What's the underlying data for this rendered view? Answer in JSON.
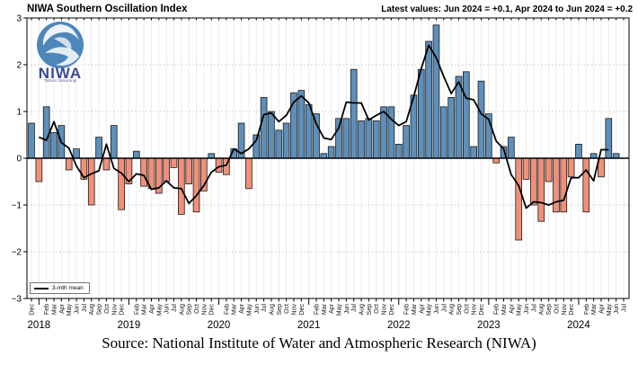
{
  "header": {
    "title": "NIWA Southern Oscillation Index",
    "latest_values": "Latest values: Jun 2024 = +0.1, Apr 2024 to Jun 2024 = +0.2"
  },
  "legend": {
    "mean_line_label": "3-mth mean"
  },
  "caption": "Source: National Institute of Water and Atmospheric Research (NIWA)",
  "logo": {
    "word": "NIWA",
    "subtext": "Taihoro Nukurangi"
  },
  "colors": {
    "positive_bar": "#5d8fbb",
    "negative_bar": "#f0907a",
    "bar_edge": "#1a1a1a",
    "mean_line": "#000000",
    "grid_h": "#c8c8c8",
    "grid_v": "#ececec",
    "axis": "#000000"
  },
  "chart_data": {
    "type": "bar",
    "title": "NIWA Southern Oscillation Index",
    "ylabel": "",
    "xlabel": "",
    "ylim": [
      -3,
      3
    ],
    "y_ticks": [
      "3",
      "2",
      "1",
      "0",
      "−1",
      "−2",
      "−3"
    ],
    "y_tick_values": [
      3,
      2,
      1,
      0,
      -1,
      -2,
      -3
    ],
    "grid": true,
    "legend_position": "lower-left",
    "start_month": "Dec 2017",
    "end_month": "Jun 2024",
    "month_names": [
      "Jan",
      "Feb",
      "Mar",
      "Apr",
      "May",
      "Jun",
      "Jul",
      "Aug",
      "Sep",
      "Oct",
      "Nov",
      "Dec"
    ],
    "year_labels": [
      "2018",
      "2019",
      "2020",
      "2021",
      "2022",
      "2023",
      "2024"
    ],
    "values": [
      0.75,
      -0.5,
      1.1,
      0.55,
      0.7,
      -0.25,
      0.2,
      -0.45,
      -1.0,
      0.45,
      -0.25,
      0.7,
      -1.1,
      -0.55,
      0.15,
      -0.6,
      -0.65,
      -0.75,
      -0.5,
      -0.2,
      -1.2,
      -0.55,
      -1.15,
      -0.7,
      0.1,
      -0.3,
      -0.35,
      0.2,
      0.75,
      -0.65,
      0.5,
      1.3,
      1.0,
      0.6,
      0.75,
      1.4,
      1.45,
      1.15,
      0.95,
      0.1,
      0.25,
      0.85,
      0.85,
      1.9,
      0.8,
      0.85,
      0.8,
      1.1,
      1.1,
      0.3,
      0.7,
      1.35,
      1.9,
      2.5,
      2.85,
      1.1,
      1.3,
      1.75,
      1.85,
      0.25,
      1.65,
      0.95,
      -0.1,
      0.25,
      0.45,
      -1.75,
      -0.45,
      -1.0,
      -1.35,
      -0.5,
      -1.15,
      -1.15,
      -0.4,
      0.3,
      -1.15,
      0.1,
      -0.4,
      0.85,
      0.1
    ],
    "series": [
      {
        "name": "Monthly SOI",
        "style": "bar"
      },
      {
        "name": "3-mth mean",
        "style": "line",
        "derivation": "centered 3-month rolling mean of values"
      }
    ]
  }
}
